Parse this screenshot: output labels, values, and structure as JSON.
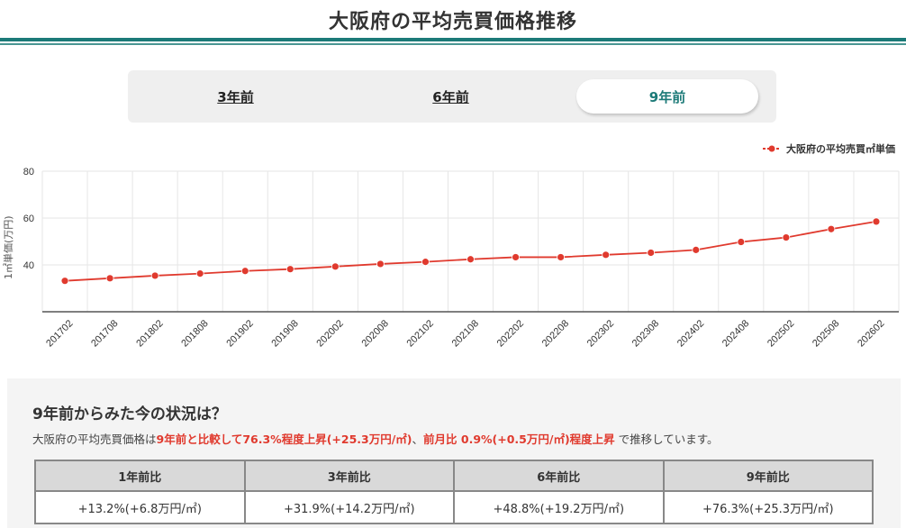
{
  "page": {
    "title": "大阪府の平均売買価格推移"
  },
  "period_tabs": [
    {
      "label": "3年前",
      "active": false
    },
    {
      "label": "6年前",
      "active": false
    },
    {
      "label": "9年前",
      "active": true
    }
  ],
  "colors": {
    "accent": "#1c7a78",
    "series": "#e03a2e",
    "highlight_text": "#e03a2e",
    "panel_bg": "#f4f4f4",
    "tab_bg": "#efefef"
  },
  "chart_data": {
    "type": "line",
    "title": "",
    "xlabel": "",
    "ylabel": "1㎡単価(万円)",
    "ylim": [
      20,
      80
    ],
    "yticks": [
      40,
      60,
      80
    ],
    "grid": true,
    "legend_position": "top-right",
    "categories": [
      "201702",
      "201708",
      "201802",
      "201808",
      "201902",
      "201908",
      "202002",
      "202008",
      "202102",
      "202108",
      "202202",
      "202208",
      "202302",
      "202308",
      "202402",
      "202408",
      "202502",
      "202508",
      "202602"
    ],
    "series": [
      {
        "name": "大阪府の平均売買㎡単価",
        "color": "#e03a2e",
        "values": [
          33.2,
          34.3,
          35.4,
          36.3,
          37.4,
          38.2,
          39.3,
          40.4,
          41.3,
          42.4,
          43.3,
          43.3,
          44.3,
          45.2,
          46.4,
          49.8,
          51.7,
          55.3,
          58.5
        ]
      }
    ]
  },
  "summary": {
    "title": "9年前からみた今の状況は？",
    "text_prefix": "大阪府の平均売買価格は",
    "text_hl1": "9年前と比較して76.3%程度上昇(+25.3万円/㎡)",
    "text_mid": "、",
    "text_hl2": "前月比 0.9%(+0.5万円/㎡)程度上昇",
    "text_suffix": " で推移しています。",
    "table": {
      "headers": [
        "1年前比",
        "3年前比",
        "6年前比",
        "9年前比"
      ],
      "values": [
        "+13.2%(+6.8万円/㎡)",
        "+31.9%(+14.2万円/㎡)",
        "+48.8%(+19.2万円/㎡)",
        "+76.3%(+25.3万円/㎡)"
      ]
    }
  }
}
